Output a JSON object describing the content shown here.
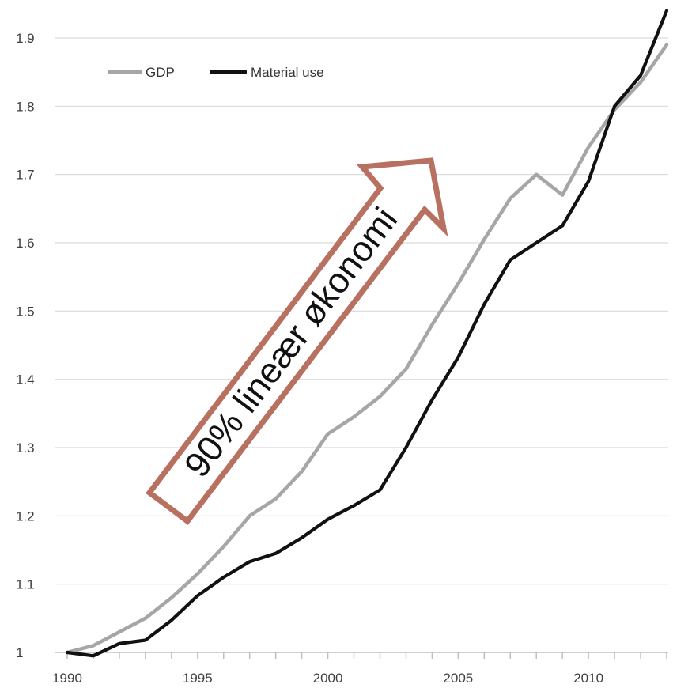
{
  "chart_data": {
    "type": "line",
    "x": [
      1990,
      1991,
      1992,
      1993,
      1994,
      1995,
      1996,
      1997,
      1998,
      1999,
      2000,
      2001,
      2002,
      2003,
      2004,
      2005,
      2006,
      2007,
      2008,
      2009,
      2010,
      2011,
      2012,
      2013
    ],
    "series": [
      {
        "name": "GDP",
        "color": "#a6a6a6",
        "values": [
          1.0,
          1.01,
          1.03,
          1.05,
          1.08,
          1.115,
          1.155,
          1.2,
          1.225,
          1.265,
          1.32,
          1.345,
          1.375,
          1.415,
          1.48,
          1.54,
          1.605,
          1.665,
          1.7,
          1.67,
          1.74,
          1.795,
          1.835,
          1.89
        ]
      },
      {
        "name": "Material use",
        "color": "#111111",
        "values": [
          1.0,
          0.995,
          1.013,
          1.018,
          1.047,
          1.083,
          1.11,
          1.133,
          1.145,
          1.168,
          1.195,
          1.215,
          1.238,
          1.3,
          1.37,
          1.432,
          1.51,
          1.575,
          1.6,
          1.625,
          1.69,
          1.8,
          1.845,
          1.94
        ]
      }
    ],
    "xlim": [
      1990,
      2013
    ],
    "ylim": [
      1,
      1.9
    ],
    "yticks": [
      "1",
      "1.1",
      "1.2",
      "1.3",
      "1.4",
      "1.5",
      "1.6",
      "1.7",
      "1.8",
      "1.9"
    ],
    "xticks": [
      "1990",
      "1995",
      "2000",
      "2005",
      "2010"
    ],
    "grid": "horizontal",
    "legend": "top-left",
    "annotation": {
      "text": "90% lineær økonomi",
      "arrow_color": "#b87060"
    }
  }
}
